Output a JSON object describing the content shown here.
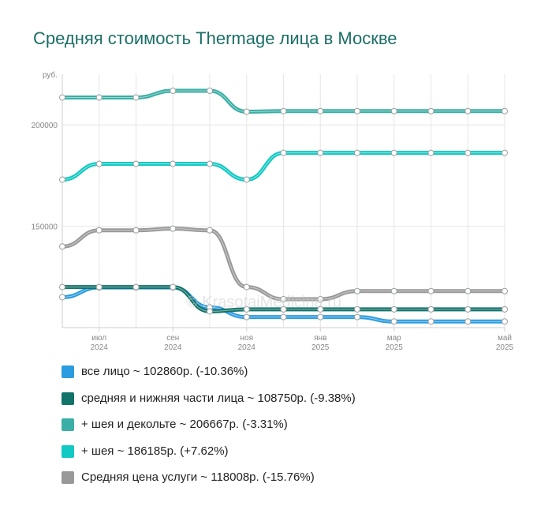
{
  "title": "Средняя стоимость Thermage лица в Москве",
  "watermark": "© KrasotaiMedicina.ru",
  "chart_data": {
    "type": "line",
    "y_unit": "руб.",
    "ylim": [
      100000,
      225000
    ],
    "yticks": [
      150000,
      200000
    ],
    "ytick_labels": [
      "150000",
      "200000"
    ],
    "grid": true,
    "x": [
      "2024-05",
      "2024-06",
      "2024-07",
      "2024-08",
      "2024-09",
      "2024-10",
      "2024-11",
      "2024-12",
      "2025-01",
      "2025-02",
      "2025-03",
      "2025-04",
      "2025-05"
    ],
    "xtick_labels": [
      {
        "month": "июл",
        "year": "2024",
        "index": 1
      },
      {
        "month": "сен",
        "year": "2024",
        "index": 3
      },
      {
        "month": "ноя",
        "year": "2024",
        "index": 5
      },
      {
        "month": "янв",
        "year": "2025",
        "index": 7
      },
      {
        "month": "мар",
        "year": "2025",
        "index": 9
      },
      {
        "month": "май",
        "year": "2025",
        "index": 12
      }
    ],
    "legend_position": "bottom",
    "series": [
      {
        "name": "все лицо",
        "color": "#2b9ce0",
        "values": [
          115000,
          119800,
          119800,
          119800,
          110000,
          105200,
          105200,
          105200,
          105200,
          103000,
          103000,
          103000,
          103000
        ]
      },
      {
        "name": "средняя и нижняя части лица",
        "color": "#12736a",
        "values": [
          120000,
          120000,
          120000,
          120000,
          108000,
          109000,
          109000,
          109000,
          109000,
          109000,
          109000,
          109000,
          109000
        ]
      },
      {
        "name": "+ шея и декольте",
        "color": "#3bafa6",
        "values": [
          213500,
          213500,
          213500,
          216800,
          216800,
          206500,
          206800,
          206800,
          206800,
          206800,
          206800,
          206800,
          206800
        ]
      },
      {
        "name": "+ шея",
        "color": "#12c9c3",
        "values": [
          173000,
          180800,
          180800,
          180800,
          180800,
          173000,
          186200,
          186200,
          186200,
          186200,
          186200,
          186200,
          186200
        ]
      },
      {
        "name": "Средняя цена услуги",
        "color": "#999999",
        "values": [
          140000,
          148000,
          148000,
          148800,
          148000,
          120000,
          114000,
          114000,
          118000,
          118000,
          118000,
          118000,
          118000
        ]
      }
    ]
  },
  "legend": [
    {
      "label": "все лицо ~ 102860р. (-10.36%)",
      "color": "#2b9ce0"
    },
    {
      "label": "средняя и нижняя части лица ~ 108750р. (-9.38%)",
      "color": "#12736a"
    },
    {
      "label": "+ шея и декольте ~ 206667р. (-3.31%)",
      "color": "#3bafa6"
    },
    {
      "label": "+ шея ~ 186185р. (+7.62%)",
      "color": "#12c9c3"
    },
    {
      "label": "Средняя цена услуги ~ 118008р. (-15.76%)",
      "color": "#999999"
    }
  ]
}
